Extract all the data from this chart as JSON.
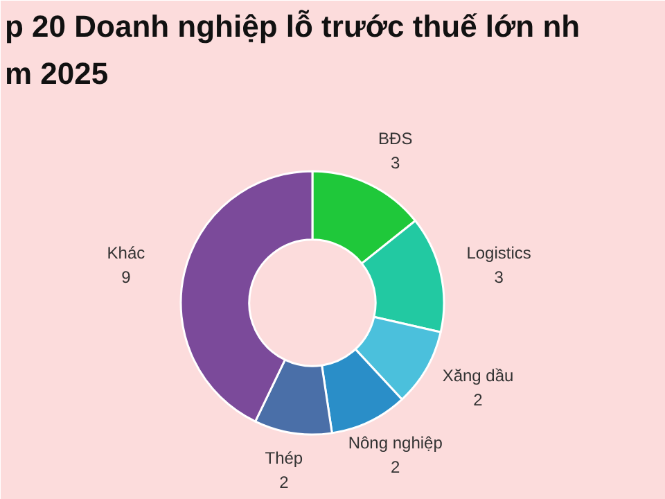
{
  "chart_data": {
    "type": "donut",
    "title": "p 20 Doanh nghiệp lỗ trước thuế lớn nh\nm 2025",
    "categories": [
      "BĐS",
      "Logistics",
      "Xăng dầu",
      "Nông nghiệp",
      "Thép",
      "Khác"
    ],
    "values": [
      3,
      3,
      2,
      2,
      2,
      9
    ],
    "colors": [
      "#1fc83a",
      "#22c9a2",
      "#4bc0dc",
      "#2a8ec8",
      "#4a6fa8",
      "#7b4a9a"
    ],
    "data_labels": true
  }
}
